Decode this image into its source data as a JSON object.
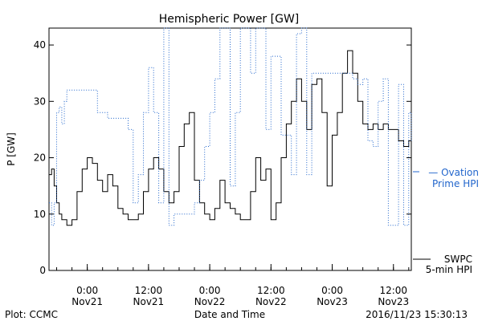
{
  "chart_data": {
    "type": "line",
    "title": "Hemispheric Power [GW]",
    "xlabel": "Date and Time",
    "ylabel": "P [GW]",
    "xlim": [
      "2016-11-20T16:30",
      "2016-11-23T15:30"
    ],
    "ylim": [
      0,
      43
    ],
    "y_ticks": [
      0,
      10,
      20,
      30,
      40
    ],
    "x_ticks": [
      {
        "t": "2016-11-21T00:00",
        "top": "0:00",
        "bottom": "Nov21"
      },
      {
        "t": "2016-11-21T12:00",
        "top": "12:00",
        "bottom": "Nov21"
      },
      {
        "t": "2016-11-22T00:00",
        "top": "0:00",
        "bottom": "Nov22"
      },
      {
        "t": "2016-11-22T12:00",
        "top": "12:00",
        "bottom": "Nov22"
      },
      {
        "t": "2016-11-23T00:00",
        "top": "0:00",
        "bottom": "Nov23"
      },
      {
        "t": "2016-11-23T12:00",
        "top": "12:00",
        "bottom": "Nov23"
      }
    ],
    "series": [
      {
        "name": "SWPC 5-min HPI",
        "label_lines": [
          "SWPC",
          "5-min HPI"
        ],
        "color": "#000000",
        "style": "solid",
        "x": [
          "2016-11-20T16:30",
          "2016-11-20T17:00",
          "2016-11-20T17:30",
          "2016-11-20T18:00",
          "2016-11-20T18:30",
          "2016-11-20T19:00",
          "2016-11-20T19:30",
          "2016-11-20T20:00",
          "2016-11-20T20:30",
          "2016-11-20T21:00",
          "2016-11-20T22:00",
          "2016-11-20T23:00",
          "2016-11-21T00:00",
          "2016-11-21T01:00",
          "2016-11-21T02:00",
          "2016-11-21T03:00",
          "2016-11-21T04:00",
          "2016-11-21T05:00",
          "2016-11-21T06:00",
          "2016-11-21T07:00",
          "2016-11-21T08:00",
          "2016-11-21T09:00",
          "2016-11-21T10:00",
          "2016-11-21T11:00",
          "2016-11-21T12:00",
          "2016-11-21T13:00",
          "2016-11-21T14:00",
          "2016-11-21T15:00",
          "2016-11-21T16:00",
          "2016-11-21T17:00",
          "2016-11-21T18:00",
          "2016-11-21T19:00",
          "2016-11-21T20:00",
          "2016-11-21T21:00",
          "2016-11-21T22:00",
          "2016-11-21T23:00",
          "2016-11-22T00:00",
          "2016-11-22T01:00",
          "2016-11-22T02:00",
          "2016-11-22T03:00",
          "2016-11-22T04:00",
          "2016-11-22T05:00",
          "2016-11-22T06:00",
          "2016-11-22T07:00",
          "2016-11-22T08:00",
          "2016-11-22T09:00",
          "2016-11-22T10:00",
          "2016-11-22T11:00",
          "2016-11-22T12:00",
          "2016-11-22T13:00",
          "2016-11-22T14:00",
          "2016-11-22T15:00",
          "2016-11-22T16:00",
          "2016-11-22T17:00",
          "2016-11-22T18:00",
          "2016-11-22T19:00",
          "2016-11-22T20:00",
          "2016-11-22T21:00",
          "2016-11-22T22:00",
          "2016-11-22T23:00",
          "2016-11-23T00:00",
          "2016-11-23T01:00",
          "2016-11-23T02:00",
          "2016-11-23T03:00",
          "2016-11-23T04:00",
          "2016-11-23T05:00",
          "2016-11-23T06:00",
          "2016-11-23T07:00",
          "2016-11-23T08:00",
          "2016-11-23T09:00",
          "2016-11-23T10:00",
          "2016-11-23T11:00",
          "2016-11-23T12:00",
          "2016-11-23T13:00",
          "2016-11-23T14:00",
          "2016-11-23T15:00",
          "2016-11-23T15:30"
        ],
        "y": [
          17,
          18,
          15,
          12,
          10,
          9,
          9,
          8,
          8,
          9,
          14,
          18,
          20,
          19,
          16,
          14,
          17,
          15,
          11,
          10,
          9,
          9,
          10,
          14,
          18,
          20,
          18,
          14,
          12,
          14,
          22,
          26,
          28,
          16,
          12,
          10,
          9,
          11,
          16,
          12,
          11,
          10,
          9,
          9,
          14,
          20,
          16,
          18,
          9,
          12,
          20,
          26,
          30,
          34,
          30,
          25,
          33,
          34,
          28,
          15,
          24,
          28,
          35,
          39,
          35,
          30,
          26,
          25,
          26,
          25,
          26,
          25,
          25,
          23,
          22,
          23,
          22
        ]
      },
      {
        "name": "Ovation Prime HPI",
        "label_lines": [
          "Ovation",
          "Prime HPI"
        ],
        "color": "#2266cc",
        "style": "dotted",
        "x": [
          "2016-11-20T16:30",
          "2016-11-20T17:00",
          "2016-11-20T17:30",
          "2016-11-20T18:00",
          "2016-11-20T18:30",
          "2016-11-20T19:00",
          "2016-11-20T19:30",
          "2016-11-20T20:00",
          "2016-11-20T21:00",
          "2016-11-20T22:00",
          "2016-11-21T00:00",
          "2016-11-21T02:00",
          "2016-11-21T04:00",
          "2016-11-21T06:00",
          "2016-11-21T08:00",
          "2016-11-21T09:00",
          "2016-11-21T10:00",
          "2016-11-21T11:00",
          "2016-11-21T11:30",
          "2016-11-21T12:00",
          "2016-11-21T13:00",
          "2016-11-21T14:00",
          "2016-11-21T15:00",
          "2016-11-21T15:30",
          "2016-11-21T16:00",
          "2016-11-21T17:00",
          "2016-11-21T18:00",
          "2016-11-21T19:00",
          "2016-11-21T20:00",
          "2016-11-21T21:00",
          "2016-11-21T22:00",
          "2016-11-21T23:00",
          "2016-11-22T00:00",
          "2016-11-22T01:00",
          "2016-11-22T02:00",
          "2016-11-22T03:00",
          "2016-11-22T04:00",
          "2016-11-22T05:00",
          "2016-11-22T06:00",
          "2016-11-22T07:00",
          "2016-11-22T08:00",
          "2016-11-22T09:00",
          "2016-11-22T10:00",
          "2016-11-22T11:00",
          "2016-11-22T12:00",
          "2016-11-22T13:00",
          "2016-11-22T14:00",
          "2016-11-22T15:00",
          "2016-11-22T16:00",
          "2016-11-22T17:00",
          "2016-11-22T18:00",
          "2016-11-22T19:00",
          "2016-11-22T20:00",
          "2016-11-22T21:00",
          "2016-11-22T22:00",
          "2016-11-22T23:00",
          "2016-11-23T00:00",
          "2016-11-23T01:00",
          "2016-11-23T02:00",
          "2016-11-23T03:00",
          "2016-11-23T04:00",
          "2016-11-23T05:00",
          "2016-11-23T06:00",
          "2016-11-23T07:00",
          "2016-11-23T08:00",
          "2016-11-23T09:00",
          "2016-11-23T10:00",
          "2016-11-23T11:00",
          "2016-11-23T12:00",
          "2016-11-23T13:00",
          "2016-11-23T14:00",
          "2016-11-23T15:00",
          "2016-11-23T15:30"
        ],
        "y": [
          12,
          8,
          12,
          28,
          29,
          26,
          30,
          32,
          32,
          32,
          32,
          28,
          27,
          27,
          25,
          12,
          17,
          28,
          28,
          36,
          28,
          12,
          43,
          43,
          8,
          10,
          10,
          10,
          10,
          12,
          16,
          22,
          28,
          34,
          43,
          43,
          15,
          28,
          43,
          43,
          35,
          43,
          43,
          25,
          38,
          38,
          24,
          24,
          17,
          42,
          43,
          17,
          35,
          35,
          35,
          35,
          35,
          35,
          35,
          35,
          34,
          33,
          34,
          23,
          22,
          30,
          34,
          8,
          8,
          33,
          8,
          28,
          23
        ]
      }
    ]
  },
  "footer": {
    "plot_credit": "Plot: CCMC",
    "timestamp": "2016/11/23 15:30:13"
  }
}
